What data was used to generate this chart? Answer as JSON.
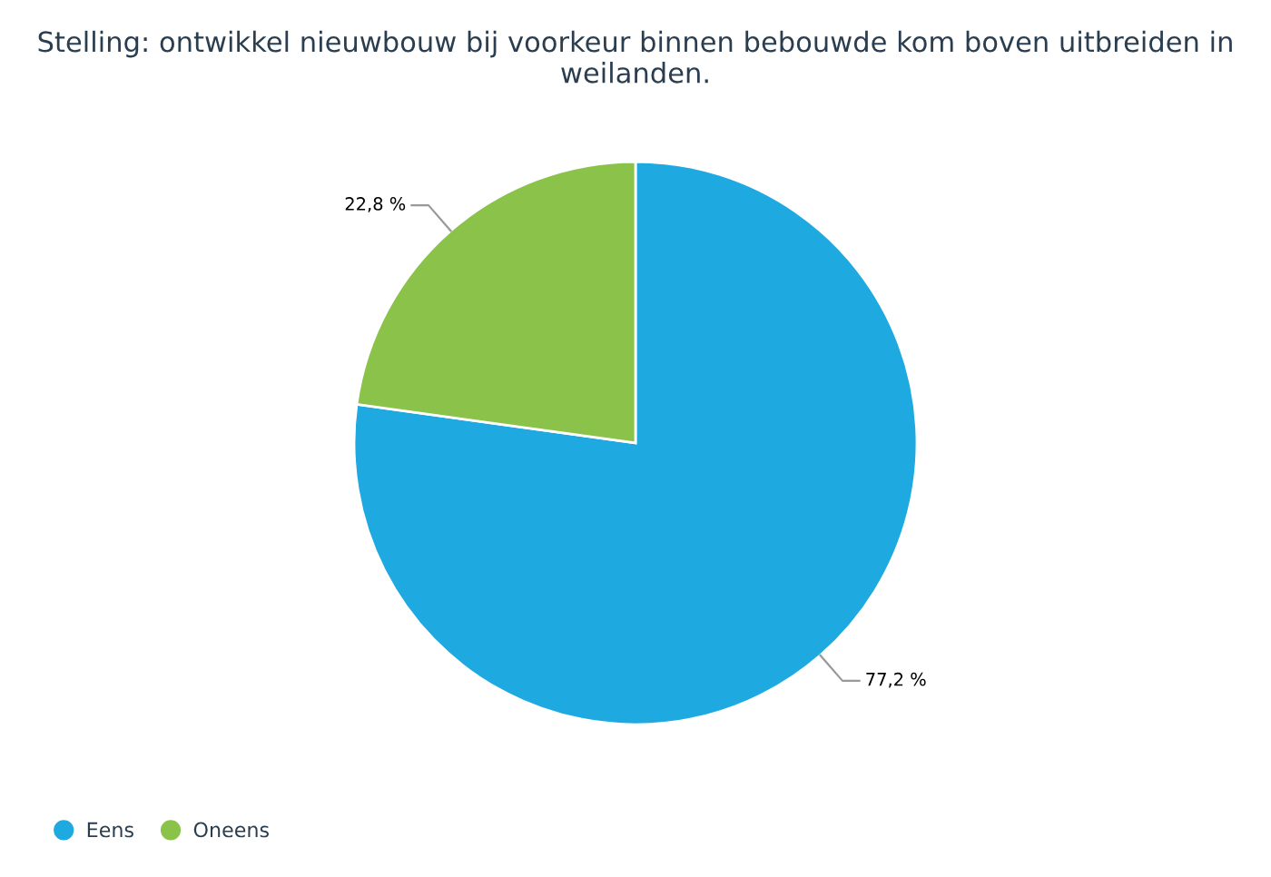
{
  "chart_data": {
    "type": "pie",
    "title": "Stelling: ontwikkel nieuwbouw bij voorkeur binnen bebouwde kom boven uitbreiden in weilanden.",
    "categories": [
      "Eens",
      "Oneens"
    ],
    "values": [
      77.2,
      22.8
    ],
    "colors": [
      "#1fa9e1",
      "#8bc34a"
    ],
    "value_labels": [
      "77,2 %",
      "22,8 %"
    ],
    "legend": "bottom left"
  }
}
